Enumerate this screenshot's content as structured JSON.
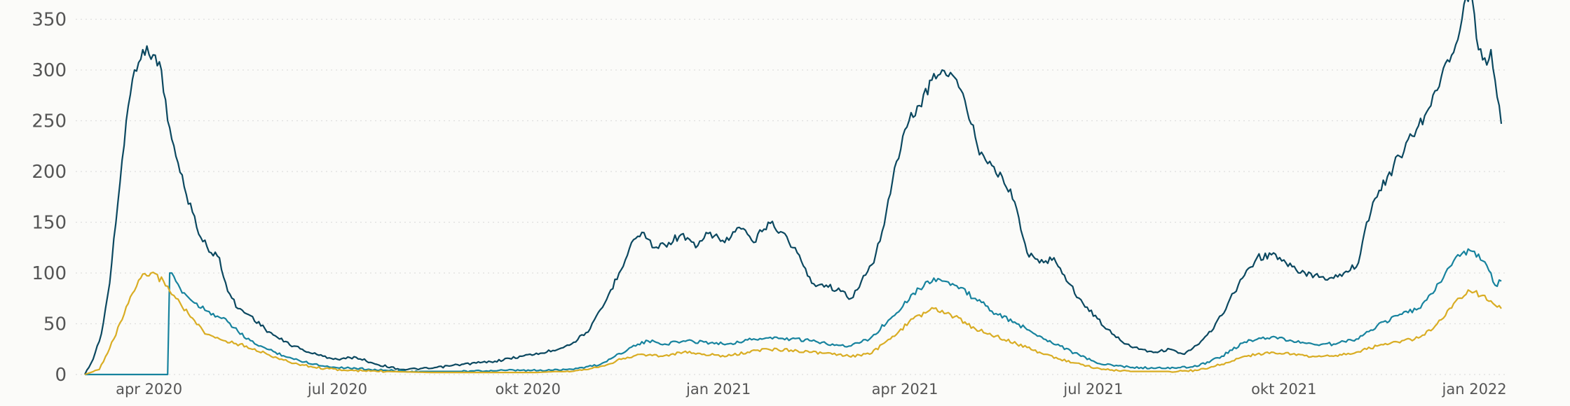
{
  "chart_data": {
    "type": "line",
    "subtitle": "",
    "x_range": [
      "2020-03-01",
      "2022-01-14"
    ],
    "ylim": [
      0,
      360
    ],
    "grid": true,
    "y_ticks": [
      0,
      50,
      100,
      150,
      200,
      250,
      300,
      350
    ],
    "x_ticks": [
      {
        "date": "2020-04-01",
        "label": "apr 2020"
      },
      {
        "date": "2020-07-01",
        "label": "jul 2020"
      },
      {
        "date": "2020-10-01",
        "label": "okt 2020"
      },
      {
        "date": "2021-01-01",
        "label": "jan 2021"
      },
      {
        "date": "2021-04-01",
        "label": "apr 2021"
      },
      {
        "date": "2021-07-01",
        "label": "jul 2021"
      },
      {
        "date": "2021-10-01",
        "label": "okt 2021"
      },
      {
        "date": "2022-01-01",
        "label": "jan 2022"
      }
    ],
    "series": [
      {
        "color": "#0b4860",
        "points": [
          [
            "2020-03-01",
            0
          ],
          [
            "2020-03-05",
            15
          ],
          [
            "2020-03-09",
            40
          ],
          [
            "2020-03-13",
            90
          ],
          [
            "2020-03-17",
            170
          ],
          [
            "2020-03-21",
            250
          ],
          [
            "2020-03-25",
            300
          ],
          [
            "2020-03-29",
            320
          ],
          [
            "2020-04-03",
            315
          ],
          [
            "2020-04-07",
            300
          ],
          [
            "2020-04-10",
            250
          ],
          [
            "2020-04-14",
            215
          ],
          [
            "2020-04-18",
            185
          ],
          [
            "2020-04-22",
            160
          ],
          [
            "2020-04-26",
            135
          ],
          [
            "2020-05-01",
            120
          ],
          [
            "2020-05-05",
            115
          ],
          [
            "2020-05-09",
            82
          ],
          [
            "2020-05-14",
            65
          ],
          [
            "2020-05-20",
            58
          ],
          [
            "2020-05-27",
            45
          ],
          [
            "2020-06-03",
            35
          ],
          [
            "2020-06-10",
            28
          ],
          [
            "2020-06-17",
            22
          ],
          [
            "2020-06-24",
            18
          ],
          [
            "2020-07-01",
            15
          ],
          [
            "2020-07-10",
            17
          ],
          [
            "2020-07-20",
            10
          ],
          [
            "2020-08-01",
            5
          ],
          [
            "2020-08-15",
            6
          ],
          [
            "2020-08-30",
            10
          ],
          [
            "2020-09-15",
            13
          ],
          [
            "2020-09-28",
            18
          ],
          [
            "2020-10-10",
            22
          ],
          [
            "2020-10-22",
            30
          ],
          [
            "2020-10-31",
            45
          ],
          [
            "2020-11-07",
            70
          ],
          [
            "2020-11-14",
            100
          ],
          [
            "2020-11-20",
            130
          ],
          [
            "2020-11-25",
            140
          ],
          [
            "2020-12-01",
            125
          ],
          [
            "2020-12-08",
            130
          ],
          [
            "2020-12-14",
            138
          ],
          [
            "2020-12-21",
            125
          ],
          [
            "2020-12-28",
            140
          ],
          [
            "2021-01-04",
            130
          ],
          [
            "2021-01-11",
            145
          ],
          [
            "2021-01-18",
            130
          ],
          [
            "2021-01-25",
            150
          ],
          [
            "2021-02-01",
            140
          ],
          [
            "2021-02-08",
            120
          ],
          [
            "2021-02-15",
            90
          ],
          [
            "2021-02-22",
            88
          ],
          [
            "2021-03-01",
            82
          ],
          [
            "2021-03-06",
            75
          ],
          [
            "2021-03-11",
            92
          ],
          [
            "2021-03-17",
            110
          ],
          [
            "2021-03-23",
            160
          ],
          [
            "2021-03-28",
            210
          ],
          [
            "2021-04-03",
            250
          ],
          [
            "2021-04-08",
            265
          ],
          [
            "2021-04-14",
            290
          ],
          [
            "2021-04-19",
            300
          ],
          [
            "2021-04-24",
            295
          ],
          [
            "2021-04-30",
            270
          ],
          [
            "2021-05-06",
            225
          ],
          [
            "2021-05-12",
            210
          ],
          [
            "2021-05-18",
            195
          ],
          [
            "2021-05-24",
            170
          ],
          [
            "2021-05-30",
            120
          ],
          [
            "2021-06-05",
            110
          ],
          [
            "2021-06-12",
            115
          ],
          [
            "2021-06-19",
            90
          ],
          [
            "2021-06-26",
            70
          ],
          [
            "2021-07-03",
            55
          ],
          [
            "2021-07-10",
            40
          ],
          [
            "2021-07-17",
            30
          ],
          [
            "2021-07-24",
            25
          ],
          [
            "2021-07-31",
            22
          ],
          [
            "2021-08-07",
            25
          ],
          [
            "2021-08-14",
            20
          ],
          [
            "2021-08-21",
            30
          ],
          [
            "2021-08-28",
            45
          ],
          [
            "2021-09-04",
            70
          ],
          [
            "2021-09-11",
            95
          ],
          [
            "2021-09-18",
            115
          ],
          [
            "2021-09-25",
            118
          ],
          [
            "2021-10-02",
            110
          ],
          [
            "2021-10-09",
            100
          ],
          [
            "2021-10-16",
            98
          ],
          [
            "2021-10-23",
            95
          ],
          [
            "2021-10-30",
            100
          ],
          [
            "2021-11-06",
            110
          ],
          [
            "2021-11-10",
            150
          ],
          [
            "2021-11-15",
            175
          ],
          [
            "2021-11-20",
            195
          ],
          [
            "2021-11-26",
            215
          ],
          [
            "2021-12-02",
            235
          ],
          [
            "2021-12-08",
            255
          ],
          [
            "2021-12-14",
            280
          ],
          [
            "2021-12-19",
            310
          ],
          [
            "2021-12-24",
            330
          ],
          [
            "2021-12-27",
            365
          ],
          [
            "2021-12-30",
            375
          ],
          [
            "2022-01-01",
            355
          ],
          [
            "2022-01-03",
            320
          ],
          [
            "2022-01-05",
            310
          ],
          [
            "2022-01-07",
            305
          ],
          [
            "2022-01-09",
            320
          ],
          [
            "2022-01-11",
            290
          ],
          [
            "2022-01-13",
            265
          ],
          [
            "2022-01-14",
            247
          ]
        ]
      },
      {
        "color": "#17839e",
        "points": [
          [
            "2020-03-01",
            0
          ],
          [
            "2020-04-10",
            0
          ],
          [
            "2020-04-11",
            100
          ],
          [
            "2020-04-16",
            85
          ],
          [
            "2020-04-22",
            72
          ],
          [
            "2020-04-30",
            62
          ],
          [
            "2020-05-09",
            52
          ],
          [
            "2020-05-18",
            35
          ],
          [
            "2020-05-28",
            25
          ],
          [
            "2020-06-10",
            15
          ],
          [
            "2020-06-25",
            8
          ],
          [
            "2020-07-10",
            6
          ],
          [
            "2020-07-25",
            4
          ],
          [
            "2020-08-10",
            3
          ],
          [
            "2020-08-30",
            3
          ],
          [
            "2020-09-20",
            4
          ],
          [
            "2020-10-10",
            4
          ],
          [
            "2020-10-25",
            6
          ],
          [
            "2020-11-05",
            10
          ],
          [
            "2020-11-12",
            18
          ],
          [
            "2020-11-20",
            27
          ],
          [
            "2020-11-28",
            33
          ],
          [
            "2020-12-06",
            30
          ],
          [
            "2020-12-15",
            33
          ],
          [
            "2020-12-25",
            32
          ],
          [
            "2021-01-05",
            30
          ],
          [
            "2021-01-15",
            34
          ],
          [
            "2021-01-25",
            36
          ],
          [
            "2021-02-05",
            35
          ],
          [
            "2021-02-15",
            33
          ],
          [
            "2021-02-25",
            30
          ],
          [
            "2021-03-05",
            28
          ],
          [
            "2021-03-15",
            35
          ],
          [
            "2021-03-25",
            55
          ],
          [
            "2021-04-05",
            80
          ],
          [
            "2021-04-15",
            95
          ],
          [
            "2021-04-25",
            88
          ],
          [
            "2021-05-05",
            75
          ],
          [
            "2021-05-15",
            60
          ],
          [
            "2021-05-25",
            50
          ],
          [
            "2021-06-05",
            38
          ],
          [
            "2021-06-15",
            28
          ],
          [
            "2021-06-25",
            18
          ],
          [
            "2021-07-05",
            10
          ],
          [
            "2021-07-20",
            7
          ],
          [
            "2021-08-05",
            6
          ],
          [
            "2021-08-20",
            8
          ],
          [
            "2021-09-01",
            18
          ],
          [
            "2021-09-12",
            32
          ],
          [
            "2021-09-25",
            37
          ],
          [
            "2021-10-05",
            33
          ],
          [
            "2021-10-15",
            30
          ],
          [
            "2021-10-25",
            30
          ],
          [
            "2021-11-05",
            35
          ],
          [
            "2021-11-15",
            48
          ],
          [
            "2021-11-25",
            58
          ],
          [
            "2021-12-05",
            65
          ],
          [
            "2021-12-12",
            80
          ],
          [
            "2021-12-18",
            100
          ],
          [
            "2021-12-24",
            118
          ],
          [
            "2021-12-30",
            122
          ],
          [
            "2022-01-05",
            112
          ],
          [
            "2022-01-09",
            100
          ],
          [
            "2022-01-11",
            88
          ],
          [
            "2022-01-14",
            92
          ]
        ]
      },
      {
        "color": "#d9ad24",
        "points": [
          [
            "2020-03-01",
            0
          ],
          [
            "2020-03-08",
            5
          ],
          [
            "2020-03-15",
            35
          ],
          [
            "2020-03-22",
            70
          ],
          [
            "2020-03-28",
            95
          ],
          [
            "2020-04-02",
            100
          ],
          [
            "2020-04-08",
            92
          ],
          [
            "2020-04-14",
            75
          ],
          [
            "2020-04-20",
            60
          ],
          [
            "2020-04-28",
            40
          ],
          [
            "2020-05-08",
            33
          ],
          [
            "2020-05-18",
            28
          ],
          [
            "2020-05-28",
            20
          ],
          [
            "2020-06-08",
            12
          ],
          [
            "2020-06-20",
            7
          ],
          [
            "2020-07-05",
            4
          ],
          [
            "2020-07-25",
            3
          ],
          [
            "2020-08-15",
            2
          ],
          [
            "2020-09-10",
            2
          ],
          [
            "2020-10-05",
            2
          ],
          [
            "2020-10-25",
            4
          ],
          [
            "2020-11-05",
            8
          ],
          [
            "2020-11-15",
            15
          ],
          [
            "2020-11-25",
            20
          ],
          [
            "2020-12-05",
            18
          ],
          [
            "2020-12-15",
            22
          ],
          [
            "2020-12-25",
            20
          ],
          [
            "2021-01-05",
            18
          ],
          [
            "2021-01-15",
            22
          ],
          [
            "2021-01-25",
            25
          ],
          [
            "2021-02-05",
            24
          ],
          [
            "2021-02-15",
            22
          ],
          [
            "2021-02-25",
            20
          ],
          [
            "2021-03-05",
            18
          ],
          [
            "2021-03-15",
            20
          ],
          [
            "2021-03-25",
            35
          ],
          [
            "2021-04-05",
            55
          ],
          [
            "2021-04-15",
            65
          ],
          [
            "2021-04-25",
            57
          ],
          [
            "2021-05-05",
            45
          ],
          [
            "2021-05-15",
            38
          ],
          [
            "2021-05-25",
            30
          ],
          [
            "2021-06-05",
            22
          ],
          [
            "2021-06-15",
            15
          ],
          [
            "2021-06-25",
            10
          ],
          [
            "2021-07-05",
            5
          ],
          [
            "2021-07-20",
            3
          ],
          [
            "2021-08-05",
            3
          ],
          [
            "2021-08-20",
            4
          ],
          [
            "2021-09-01",
            10
          ],
          [
            "2021-09-12",
            18
          ],
          [
            "2021-09-25",
            22
          ],
          [
            "2021-10-05",
            20
          ],
          [
            "2021-10-15",
            18
          ],
          [
            "2021-10-25",
            18
          ],
          [
            "2021-11-05",
            22
          ],
          [
            "2021-11-15",
            28
          ],
          [
            "2021-11-25",
            32
          ],
          [
            "2021-12-05",
            36
          ],
          [
            "2021-12-12",
            45
          ],
          [
            "2021-12-18",
            58
          ],
          [
            "2021-12-24",
            75
          ],
          [
            "2021-12-30",
            82
          ],
          [
            "2022-01-05",
            78
          ],
          [
            "2022-01-10",
            70
          ],
          [
            "2022-01-14",
            65
          ]
        ]
      }
    ]
  }
}
